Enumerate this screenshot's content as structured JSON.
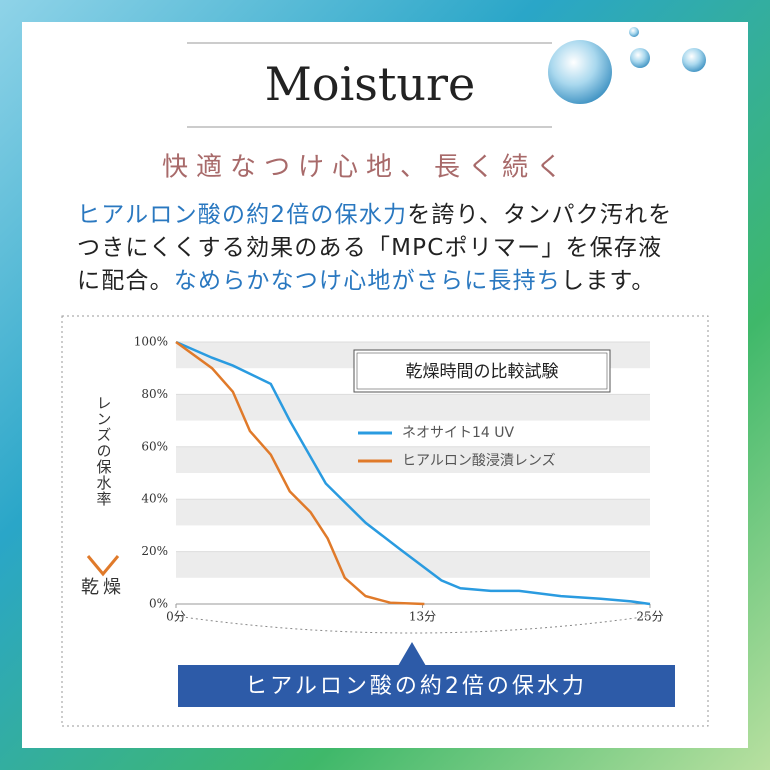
{
  "header": {
    "title": "Moisture",
    "subtitle": "快適なつけ心地、長く続く"
  },
  "body": {
    "lines": [
      [
        {
          "text": "ヒアルロン酸の約2倍の保水力",
          "color": "#2a78c0"
        },
        {
          "text": "を誇り、タンパク汚れを",
          "color": "#222222"
        }
      ],
      [
        {
          "text": "つきにくくする効果のある「MPCポリマー」を保存液",
          "color": "#222222"
        }
      ],
      [
        {
          "text": "に配合。",
          "color": "#222222"
        },
        {
          "text": "なめらかなつけ心地がさらに長持ち",
          "color": "#2a78c0"
        },
        {
          "text": "します。",
          "color": "#222222"
        }
      ]
    ]
  },
  "banner": {
    "text": "ヒアルロン酸の約2倍の保水力"
  },
  "chart_data": {
    "type": "line",
    "legend_title": "乾燥時間の比較試験",
    "y_label": "レンズの保水率",
    "y_label_bottom": "乾燥",
    "xlim": [
      0,
      25
    ],
    "ylim": [
      0,
      100
    ],
    "xticks": [
      {
        "value": 0,
        "label": "0分"
      },
      {
        "value": 13,
        "label": "13分"
      },
      {
        "value": 25,
        "label": "25分"
      }
    ],
    "yticks": [
      {
        "value": 0,
        "label": "0%"
      },
      {
        "value": 20,
        "label": "20%"
      },
      {
        "value": 40,
        "label": "40%"
      },
      {
        "value": 60,
        "label": "60%"
      },
      {
        "value": 80,
        "label": "80%"
      },
      {
        "value": 100,
        "label": "100%"
      }
    ],
    "series": [
      {
        "name": "ネオサイト14 UV",
        "color": "#2a9be0",
        "x": [
          0,
          1.9,
          3,
          5,
          6,
          7.9,
          10,
          11.8,
          14,
          15,
          16.6,
          18.1,
          20.3,
          22.4,
          24,
          25
        ],
        "values": [
          100,
          94,
          91,
          84,
          70,
          46,
          31,
          21,
          9,
          6,
          5,
          5,
          3,
          2,
          1,
          0
        ]
      },
      {
        "name": "ヒアルロン酸浸漬レンズ",
        "color": "#e07a2a",
        "x": [
          0,
          1.9,
          3,
          3.9,
          5,
          6,
          7.1,
          8,
          8.9,
          10,
          11.3,
          13.1
        ],
        "values": [
          100,
          90,
          81,
          66,
          57,
          43,
          35,
          25,
          10,
          3,
          0.5,
          0
        ]
      }
    ]
  }
}
